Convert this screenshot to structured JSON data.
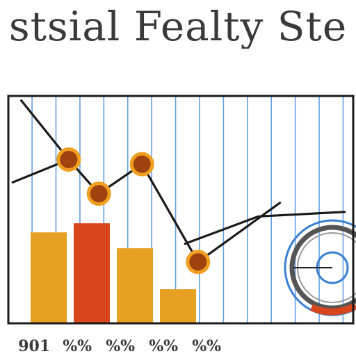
{
  "title": "stsial Fealty Ste",
  "colors": {
    "frame": "#1a1a1a",
    "grid": "#4a90d9",
    "bar_orange": "#e6a022",
    "bar_red": "#d9461e",
    "marker_fill": "#a0420e",
    "marker_ring": "#f0a020",
    "line": "#1a1a1a",
    "gauge_blue": "#3a7fd0",
    "gauge_red": "#d9461e"
  },
  "icons": [
    "gauge-icon"
  ],
  "chart_data": {
    "type": "bar",
    "title": "stsial Fealty Ste",
    "xlabel": "",
    "ylabel": "",
    "grid": true,
    "ylim": [
      0,
      100
    ],
    "categories": [
      "901",
      "%%",
      "%%",
      "%%",
      "%%"
    ],
    "bars": [
      {
        "x": 1,
        "value": 40,
        "color": "orange"
      },
      {
        "x": 2,
        "value": 44,
        "color": "red"
      },
      {
        "x": 3,
        "value": 33,
        "color": "orange"
      },
      {
        "x": 4,
        "value": 15,
        "color": "orange"
      }
    ],
    "tick_labels": [
      {
        "x": 0.6,
        "label": "901"
      },
      {
        "x": 1.6,
        "label": "%%"
      },
      {
        "x": 2.6,
        "label": "%%"
      },
      {
        "x": 3.6,
        "label": "%%"
      },
      {
        "x": 4.6,
        "label": "%%"
      }
    ],
    "series": [
      {
        "type": "line",
        "points": [
          [
            0.3,
            98
          ],
          [
            1.4,
            72
          ],
          [
            2.1,
            57
          ],
          [
            3.1,
            70
          ],
          [
            4.4,
            27
          ],
          [
            6.3,
            53
          ]
        ]
      },
      {
        "type": "line",
        "points": [
          [
            0.1,
            62
          ],
          [
            1.4,
            72
          ]
        ]
      },
      {
        "type": "line",
        "points": [
          [
            4.1,
            35
          ],
          [
            5.8,
            47
          ],
          [
            7.8,
            49
          ]
        ]
      }
    ],
    "markers": [
      [
        1.4,
        72
      ],
      [
        2.1,
        57
      ],
      [
        3.1,
        70
      ],
      [
        4.4,
        27
      ]
    ],
    "xlim": [
      0,
      8
    ]
  }
}
